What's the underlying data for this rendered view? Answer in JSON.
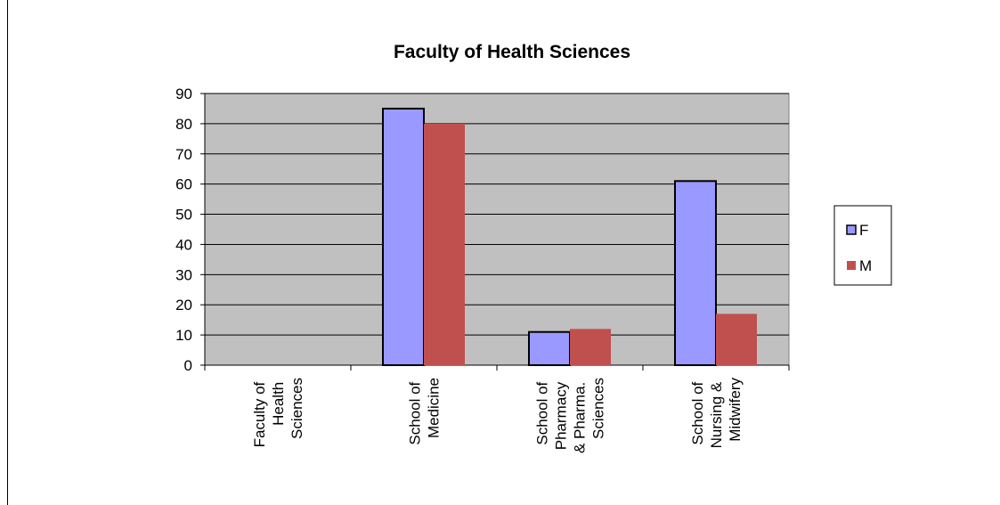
{
  "chart_data": {
    "type": "bar",
    "title": "Faculty of Health Sciences",
    "categories": [
      "Faculty of\nHealth\nSciences",
      "School of\nMedicine",
      "School of\nPharmacy\n& Pharma.\nSciences",
      "School of\nNursing &\nMidwifery"
    ],
    "series": [
      {
        "name": "F",
        "color": "#9999ff",
        "values": [
          0,
          85,
          11,
          61
        ]
      },
      {
        "name": "M",
        "color": "#c0504d",
        "values": [
          0,
          80,
          12,
          17
        ]
      }
    ],
    "ylim": [
      0,
      90
    ],
    "yticks": [
      0,
      10,
      20,
      30,
      40,
      50,
      60,
      70,
      80,
      90
    ],
    "grid": true,
    "legend": "right"
  }
}
